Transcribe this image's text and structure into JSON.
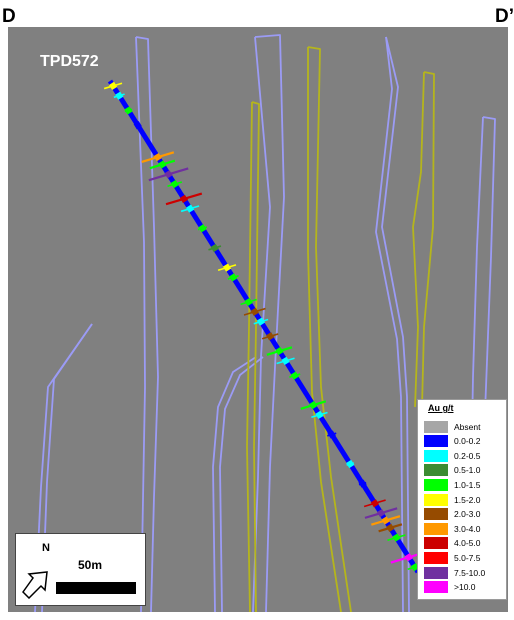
{
  "section": {
    "start_label": "D",
    "end_label": "D’"
  },
  "drillhole": {
    "label": "TPD572"
  },
  "legend": {
    "title": "Au g/t",
    "items": [
      {
        "label": "Absent",
        "color": "#a6a6a6"
      },
      {
        "label": "0.0-0.2",
        "color": "#0000ff"
      },
      {
        "label": "0.2-0.5",
        "color": "#00ffff"
      },
      {
        "label": "0.5-1.0",
        "color": "#3c8c32"
      },
      {
        "label": "1.0-1.5",
        "color": "#00ff00"
      },
      {
        "label": "1.5-2.0",
        "color": "#ffff00"
      },
      {
        "label": "2.0-3.0",
        "color": "#964b00"
      },
      {
        "label": "3.0-4.0",
        "color": "#ff9900"
      },
      {
        "label": "4.0-5.0",
        "color": "#cc0000"
      },
      {
        "label": "5.0-7.5",
        "color": "#ff0000"
      },
      {
        "label": "7.5-10.0",
        "color": "#7030a0"
      },
      {
        "label": ">10.0",
        "color": "#ff00ff"
      }
    ]
  },
  "scale": {
    "north_label": "N",
    "distance_label": "50m"
  },
  "colors": {
    "background": "#808080",
    "lode_outline_lavender": "#9b9bf5",
    "lode_outline_yellow": "#b5b51c",
    "drillhole": "#0000ff"
  }
}
